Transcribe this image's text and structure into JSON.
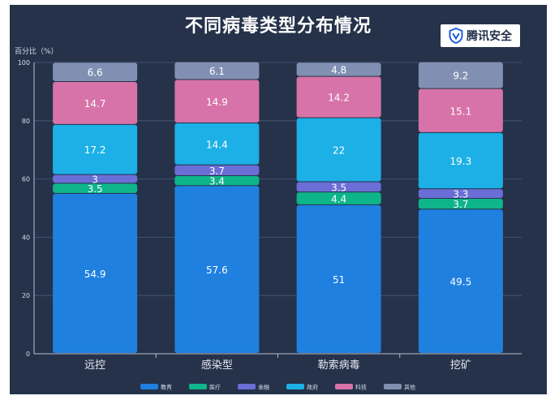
{
  "chart_data": {
    "type": "bar",
    "stacked": true,
    "title": "不同病毒类型分布情况",
    "ylabel": "百分比（%）",
    "ylim": [
      0,
      100
    ],
    "yticks": [
      0,
      20,
      40,
      60,
      80,
      100
    ],
    "grid": true,
    "legend_position": "bottom",
    "categories": [
      "远控",
      "感染型",
      "勒索病毒",
      "挖矿"
    ],
    "series": [
      {
        "name": "教育",
        "color": "#1f80e0",
        "values": [
          54.9,
          57.6,
          51,
          49.5
        ]
      },
      {
        "name": "医疗",
        "color": "#0fb58a",
        "values": [
          3.5,
          3.4,
          4.4,
          3.7
        ]
      },
      {
        "name": "金融",
        "color": "#6a6ed6",
        "values": [
          3,
          3.7,
          3.5,
          3.3
        ]
      },
      {
        "name": "政府",
        "color": "#1cb0e6",
        "values": [
          17.2,
          14.4,
          22,
          19.3
        ]
      },
      {
        "name": "科技",
        "color": "#d773a8",
        "values": [
          14.7,
          14.9,
          14.2,
          15.1
        ]
      },
      {
        "name": "其他",
        "color": "#8190b2",
        "values": [
          6.6,
          6.1,
          4.8,
          9.2
        ]
      }
    ]
  },
  "brand": {
    "name": "腾讯安全",
    "icon": "shield-v-icon"
  }
}
